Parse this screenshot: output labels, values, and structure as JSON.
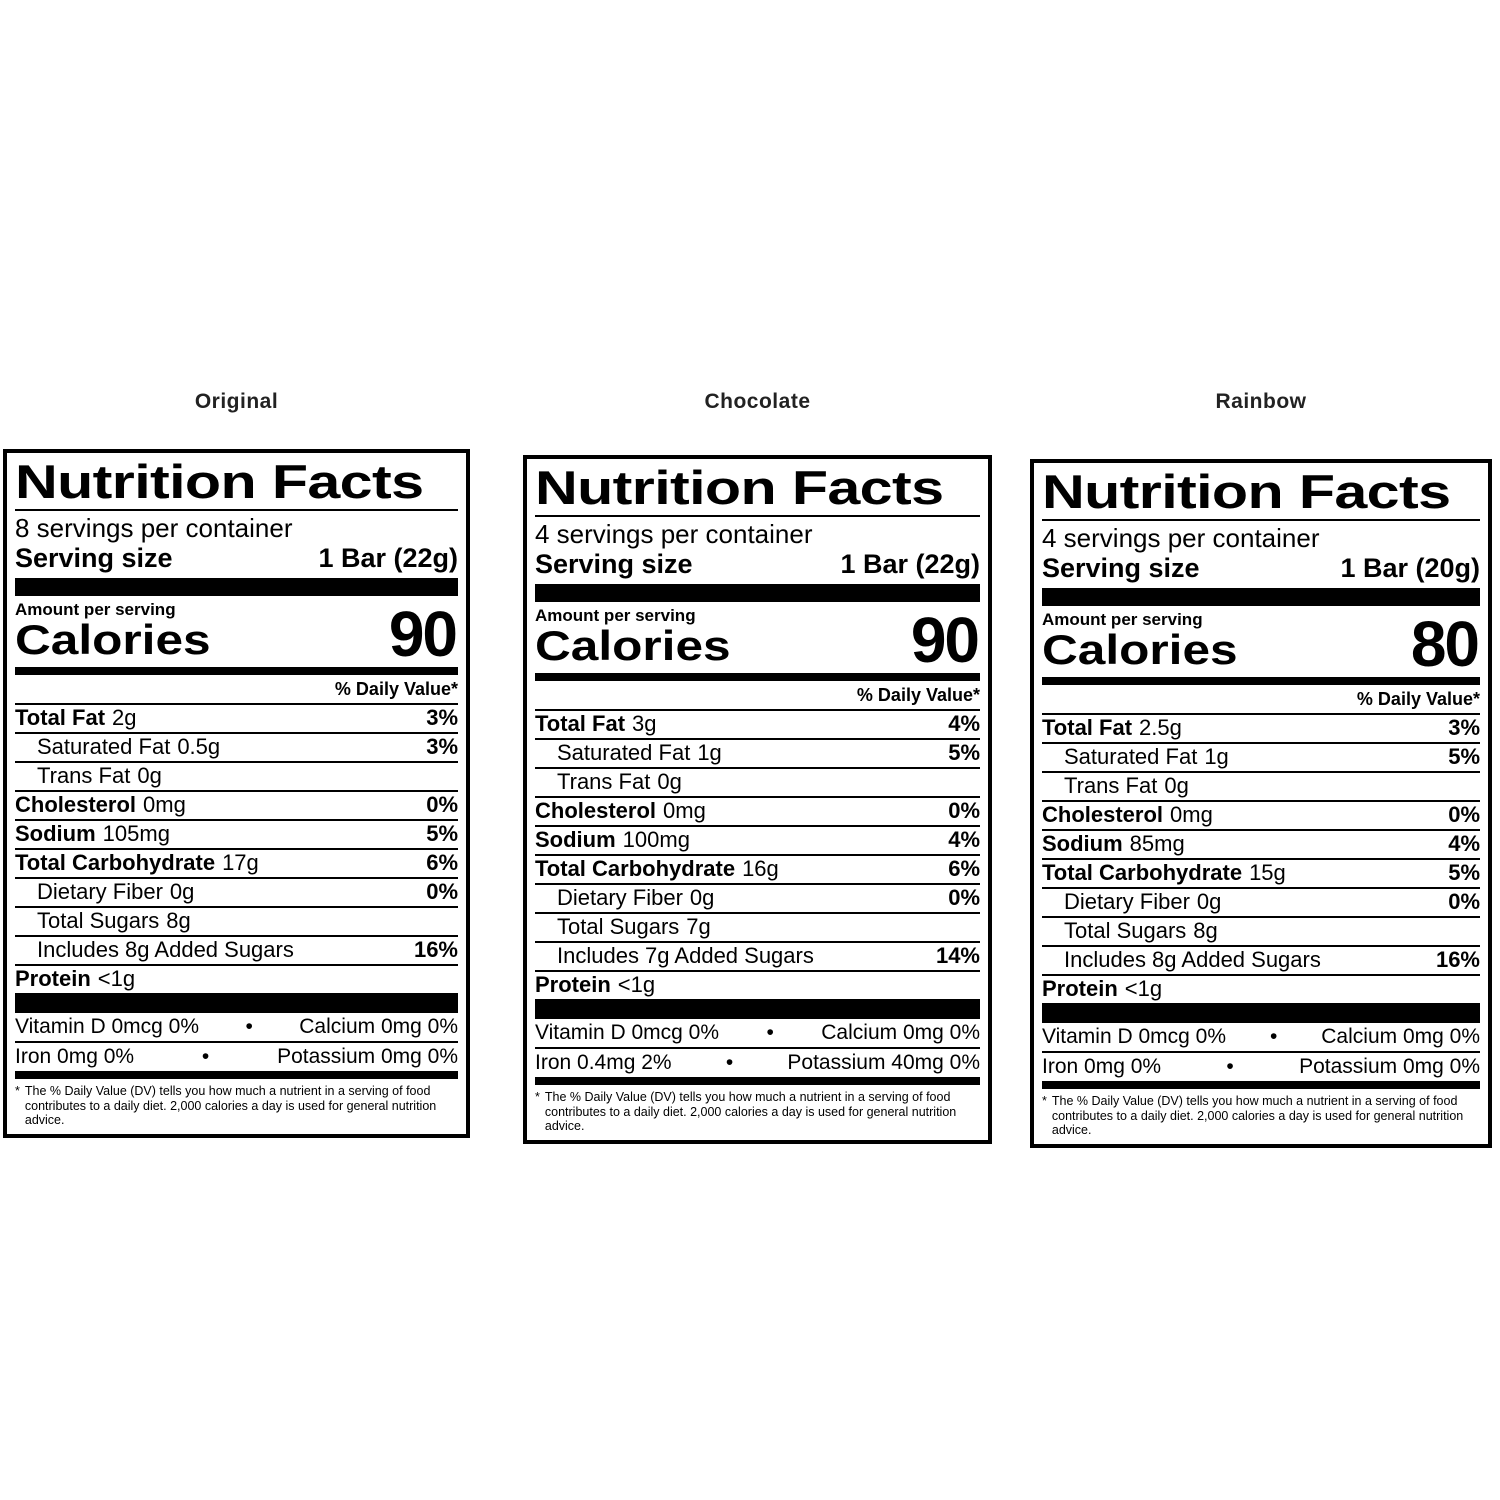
{
  "page": {
    "background": "#ffffff",
    "text_color": "#000000"
  },
  "glyphs": {
    "bullet": "•",
    "asterisk": "*"
  },
  "labels": [
    {
      "flavor": "Original",
      "title": "Nutrition Facts",
      "servings_per_container": "8 servings per container",
      "serving_size_label": "Serving size",
      "serving_size_value": "1 Bar (22g)",
      "amount_per_serving": "Amount per serving",
      "calories_label": "Calories",
      "calories_value": "90",
      "daily_value_header": "% Daily Value*",
      "rows": [
        {
          "name": "Total Fat",
          "amount": "2g",
          "dv": "3%"
        },
        {
          "name": "Saturated Fat",
          "amount": "0.5g",
          "dv": "3%"
        },
        {
          "name": "Trans Fat",
          "amount": "0g",
          "dv": ""
        },
        {
          "name": "Cholesterol",
          "amount": "0mg",
          "dv": "0%"
        },
        {
          "name": "Sodium",
          "amount": "105mg",
          "dv": "5%"
        },
        {
          "name": "Total Carbohydrate",
          "amount": "17g",
          "dv": "6%"
        },
        {
          "name": "Dietary Fiber",
          "amount": "0g",
          "dv": "0%"
        },
        {
          "name": "Total Sugars",
          "amount": "8g",
          "dv": ""
        },
        {
          "name": "Includes 8g Added Sugars",
          "amount": "",
          "dv": "16%"
        },
        {
          "name": "Protein",
          "amount": "<1g",
          "dv": ""
        }
      ],
      "micros": [
        {
          "left": "Vitamin D 0mcg 0%",
          "right": "Calcium 0mg 0%"
        },
        {
          "left": "Iron 0mg 0%",
          "right": "Potassium 0mg 0%"
        }
      ],
      "footnote": "The % Daily Value (DV) tells you how much a nutrient in a serving of food contributes to a daily diet. 2,000 calories a day is used for general nutrition advice."
    },
    {
      "flavor": "Chocolate",
      "title": "Nutrition Facts",
      "servings_per_container": "4 servings per container",
      "serving_size_label": "Serving size",
      "serving_size_value": "1 Bar (22g)",
      "amount_per_serving": "Amount per serving",
      "calories_label": "Calories",
      "calories_value": "90",
      "daily_value_header": "% Daily Value*",
      "rows": [
        {
          "name": "Total Fat",
          "amount": "3g",
          "dv": "4%"
        },
        {
          "name": "Saturated Fat",
          "amount": "1g",
          "dv": "5%"
        },
        {
          "name": "Trans Fat",
          "amount": "0g",
          "dv": ""
        },
        {
          "name": "Cholesterol",
          "amount": "0mg",
          "dv": "0%"
        },
        {
          "name": "Sodium",
          "amount": "100mg",
          "dv": "4%"
        },
        {
          "name": "Total Carbohydrate",
          "amount": "16g",
          "dv": "6%"
        },
        {
          "name": "Dietary Fiber",
          "amount": "0g",
          "dv": "0%"
        },
        {
          "name": "Total Sugars",
          "amount": "7g",
          "dv": ""
        },
        {
          "name": "Includes 7g Added Sugars",
          "amount": "",
          "dv": "14%"
        },
        {
          "name": "Protein",
          "amount": "<1g",
          "dv": ""
        }
      ],
      "micros": [
        {
          "left": "Vitamin D 0mcg 0%",
          "right": "Calcium 0mg 0%"
        },
        {
          "left": "Iron 0.4mg 2%",
          "right": "Potassium 40mg 0%"
        }
      ],
      "footnote": "The % Daily Value (DV) tells you how much a nutrient in a serving of food contributes to a daily diet. 2,000 calories a day is used for general nutrition advice."
    },
    {
      "flavor": "Rainbow",
      "title": "Nutrition Facts",
      "servings_per_container": "4 servings per container",
      "serving_size_label": "Serving size",
      "serving_size_value": "1 Bar (20g)",
      "amount_per_serving": "Amount per serving",
      "calories_label": "Calories",
      "calories_value": "80",
      "daily_value_header": "% Daily Value*",
      "rows": [
        {
          "name": "Total Fat",
          "amount": "2.5g",
          "dv": "3%"
        },
        {
          "name": "Saturated Fat",
          "amount": "1g",
          "dv": "5%"
        },
        {
          "name": "Trans Fat",
          "amount": "0g",
          "dv": ""
        },
        {
          "name": "Cholesterol",
          "amount": "0mg",
          "dv": "0%"
        },
        {
          "name": "Sodium",
          "amount": "85mg",
          "dv": "4%"
        },
        {
          "name": "Total Carbohydrate",
          "amount": "15g",
          "dv": "5%"
        },
        {
          "name": "Dietary Fiber",
          "amount": "0g",
          "dv": "0%"
        },
        {
          "name": "Total Sugars",
          "amount": "8g",
          "dv": ""
        },
        {
          "name": "Includes 8g Added Sugars",
          "amount": "",
          "dv": "16%"
        },
        {
          "name": "Protein",
          "amount": "<1g",
          "dv": ""
        }
      ],
      "micros": [
        {
          "left": "Vitamin D 0mcg 0%",
          "right": "Calcium 0mg 0%"
        },
        {
          "left": "Iron 0mg 0%",
          "right": "Potassium 0mg 0%"
        }
      ],
      "footnote": "The % Daily Value (DV) tells you how much a nutrient in a serving of food contributes to a daily diet. 2,000 calories a day is used for general nutrition advice."
    }
  ]
}
